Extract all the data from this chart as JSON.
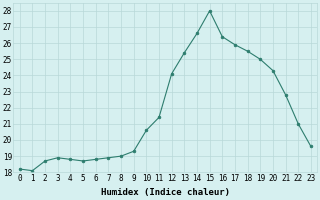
{
  "x": [
    0,
    1,
    2,
    3,
    4,
    5,
    6,
    7,
    8,
    9,
    10,
    11,
    12,
    13,
    14,
    15,
    16,
    17,
    18,
    19,
    20,
    21,
    22,
    23
  ],
  "y": [
    18.2,
    18.1,
    18.7,
    18.9,
    18.8,
    18.7,
    18.8,
    18.9,
    19.0,
    19.3,
    20.6,
    21.4,
    24.1,
    25.4,
    26.6,
    28.0,
    26.4,
    25.9,
    25.5,
    25.0,
    24.3,
    22.8,
    21.0,
    19.6
  ],
  "line_color": "#2d7d6e",
  "marker": "o",
  "marker_size": 2,
  "bg_color": "#d6f0f0",
  "grid_color": "#b8d8d8",
  "xlabel": "Humidex (Indice chaleur)",
  "ylim": [
    18,
    28.5
  ],
  "xlim": [
    -0.5,
    23.5
  ],
  "yticks": [
    18,
    19,
    20,
    21,
    22,
    23,
    24,
    25,
    26,
    27,
    28
  ],
  "xticks": [
    0,
    1,
    2,
    3,
    4,
    5,
    6,
    7,
    8,
    9,
    10,
    11,
    12,
    13,
    14,
    15,
    16,
    17,
    18,
    19,
    20,
    21,
    22,
    23
  ],
  "tick_fontsize": 5.5,
  "xlabel_fontsize": 6.5,
  "xlabel_fontweight": "bold"
}
